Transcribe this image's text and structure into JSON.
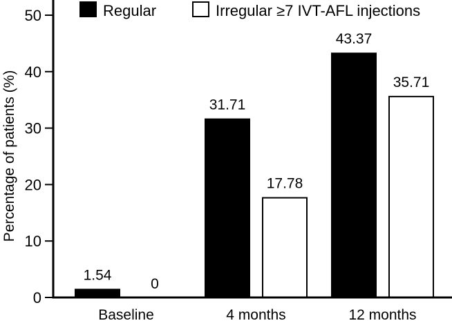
{
  "chart_data": {
    "type": "bar",
    "title": "",
    "xlabel": "",
    "ylabel": "Percentage of patients (%)",
    "ylim": [
      0,
      50
    ],
    "yticks": [
      0,
      10,
      20,
      30,
      40,
      50
    ],
    "grid": false,
    "legend_position": "top",
    "categories": [
      "Baseline",
      "4 months",
      "12 months"
    ],
    "series": [
      {
        "name": "Regular",
        "fill": "#000000",
        "values": [
          1.54,
          31.71,
          43.37
        ],
        "labels": [
          "1.54",
          "31.71",
          "43.37"
        ]
      },
      {
        "name": "Irregular ≥7 IVT-AFL injections",
        "fill": "#ffffff",
        "values": [
          0,
          17.78,
          35.71
        ],
        "labels": [
          "0",
          "17.78",
          "35.71"
        ]
      }
    ]
  },
  "colors": {
    "bar_regular": "#000000",
    "bar_irregular": "#ffffff",
    "axis": "#000000"
  }
}
